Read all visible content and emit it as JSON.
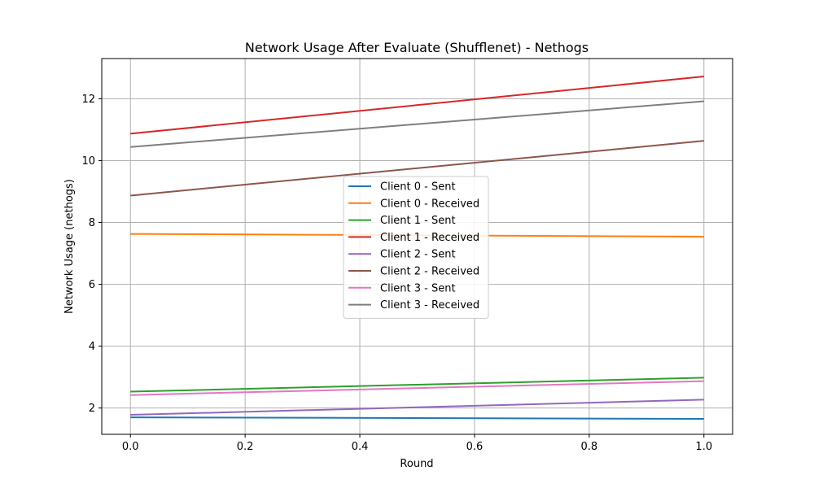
{
  "chart_data": {
    "type": "line",
    "title": "Network Usage After Evaluate (Shufflenet) - Nethogs",
    "xlabel": "Round",
    "ylabel": "Network Usage (nethogs)",
    "xlim": [
      -0.05,
      1.05
    ],
    "ylim": [
      1.15,
      13.3
    ],
    "xticks": [
      0.0,
      0.2,
      0.4,
      0.6,
      0.8,
      1.0
    ],
    "xtick_labels": [
      "0.0",
      "0.2",
      "0.4",
      "0.6",
      "0.8",
      "1.0"
    ],
    "yticks": [
      2,
      4,
      6,
      8,
      10,
      12
    ],
    "ytick_labels": [
      "2",
      "4",
      "6",
      "8",
      "10",
      "12"
    ],
    "grid": true,
    "legend_position": "center",
    "x": [
      0.0,
      1.0
    ],
    "series": [
      {
        "name": "Client 0 - Sent",
        "color": "#1f77b4",
        "values": [
          1.7,
          1.65
        ]
      },
      {
        "name": "Client 0 - Received",
        "color": "#ff7f0e",
        "values": [
          7.63,
          7.54
        ]
      },
      {
        "name": "Client 1 - Sent",
        "color": "#2ca02c",
        "values": [
          2.53,
          2.98
        ]
      },
      {
        "name": "Client 1 - Received",
        "color": "#d62728",
        "values": [
          10.87,
          12.72
        ]
      },
      {
        "name": "Client 2 - Sent",
        "color": "#9467bd",
        "values": [
          1.78,
          2.27
        ]
      },
      {
        "name": "Client 2 - Received",
        "color": "#8c564b",
        "values": [
          8.87,
          10.64
        ]
      },
      {
        "name": "Client 3 - Sent",
        "color": "#e377c2",
        "values": [
          2.42,
          2.87
        ]
      },
      {
        "name": "Client 3 - Received",
        "color": "#7f7f7f",
        "values": [
          10.44,
          11.92
        ]
      }
    ]
  }
}
